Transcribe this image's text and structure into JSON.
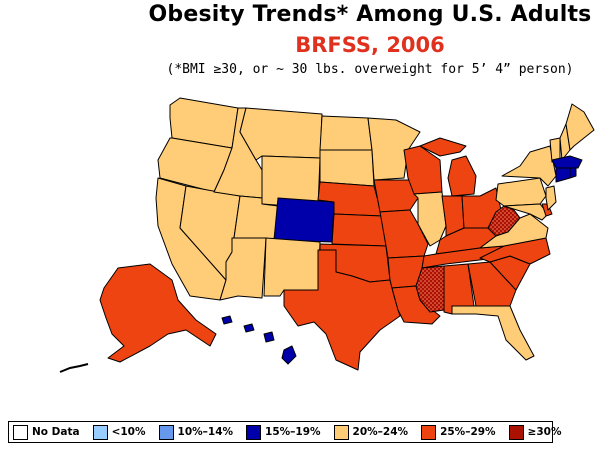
{
  "title": "Obesity Trends*  Among U.S. Adults",
  "subtitle": "BRFSS, 2006",
  "note": "(*BMI ≥30, or ~ 30 lbs. overweight for 5’ 4” person)",
  "colors": {
    "no_data": "#ffffff",
    "lt10": "#99ccff",
    "p10_14": "#6699ee",
    "p15_19": "#0000aa",
    "p20_24": "#ffcc77",
    "p25_29": "#ee4411",
    "ge30": "#aa1100"
  },
  "legend": [
    {
      "label": "No Data",
      "color": "#ffffff"
    },
    {
      "label": "<10%",
      "color": "#99ccff"
    },
    {
      "label": "10%–14%",
      "color": "#6699ee"
    },
    {
      "label": "15%–19%",
      "color": "#0000aa"
    },
    {
      "label": "20%–24%",
      "color": "#ffcc77"
    },
    {
      "label": "25%–29%",
      "color": "#ee4411"
    },
    {
      "label": "≥30%",
      "color": "#aa1100"
    }
  ],
  "state_categories": {
    "WA": "20%–24%",
    "OR": "20%–24%",
    "CA": "20%–24%",
    "NV": "20%–24%",
    "ID": "20%–24%",
    "MT": "20%–24%",
    "WY": "20%–24%",
    "UT": "20%–24%",
    "AZ": "20%–24%",
    "NM": "20%–24%",
    "ND": "20%–24%",
    "SD": "20%–24%",
    "MN": "20%–24%",
    "IL": "20%–24%",
    "NY": "20%–24%",
    "PA": "20%–24%",
    "VA": "20%–24%",
    "FL": "20%–24%",
    "NJ": "20%–24%",
    "MD": "20%–24%",
    "ME": "20%–24%",
    "NH": "20%–24%",
    "VT": "20%–24%",
    "CO": "15%–19%",
    "MA": "15%–19%",
    "CT": "15%–19%",
    "RI": "15%–19%",
    "HI": "15%–19%",
    "NE": "25%–29%",
    "KS": "25%–29%",
    "OK": "25%–29%",
    "TX": "25%–29%",
    "IA": "25%–29%",
    "MO": "25%–29%",
    "AR": "25%–29%",
    "LA": "25%–29%",
    "WI": "25%–29%",
    "MI": "25%–29%",
    "IN": "25%–29%",
    "OH": "25%–29%",
    "KY": "25%–29%",
    "TN": "25%–29%",
    "AL": "25%–29%",
    "GA": "25%–29%",
    "SC": "25%–29%",
    "NC": "25%–29%",
    "AK": "25%–29%",
    "DE": "25%–29%",
    "MS": "≥30%",
    "WV": "≥30%"
  }
}
